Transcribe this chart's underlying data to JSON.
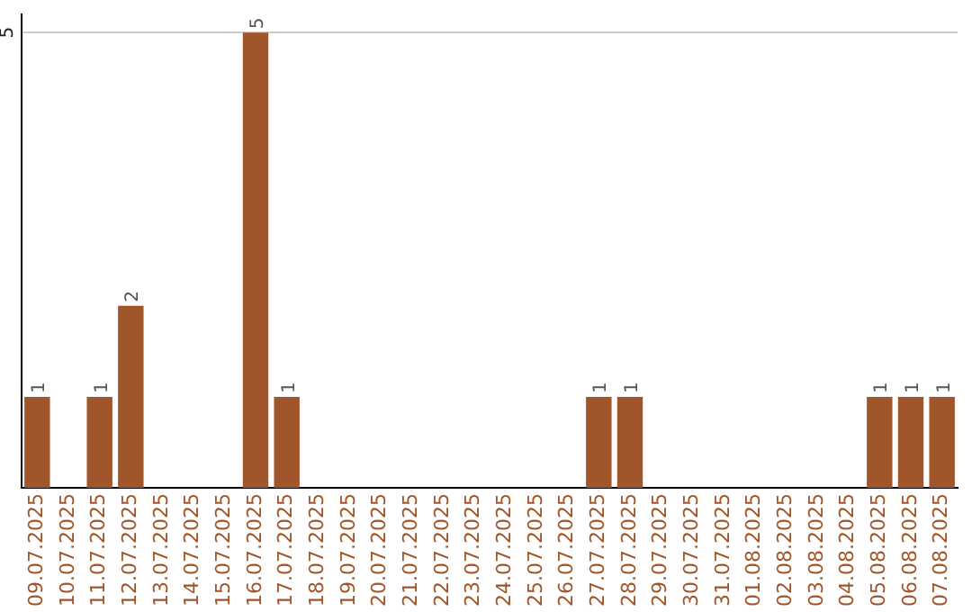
{
  "chart_data": {
    "type": "bar",
    "categories": [
      "09.07.2025",
      "10.07.2025",
      "11.07.2025",
      "12.07.2025",
      "13.07.2025",
      "14.07.2025",
      "15.07.2025",
      "16.07.2025",
      "17.07.2025",
      "18.07.2025",
      "19.07.2025",
      "20.07.2025",
      "21.07.2025",
      "22.07.2025",
      "23.07.2025",
      "24.07.2025",
      "25.07.2025",
      "26.07.2025",
      "27.07.2025",
      "28.07.2025",
      "29.07.2025",
      "30.07.2025",
      "31.07.2025",
      "01.08.2025",
      "02.08.2025",
      "03.08.2025",
      "04.08.2025",
      "05.08.2025",
      "06.08.2025",
      "07.08.2025"
    ],
    "values": [
      1,
      0,
      1,
      2,
      0,
      0,
      0,
      5,
      1,
      0,
      0,
      0,
      0,
      0,
      0,
      0,
      0,
      0,
      1,
      1,
      0,
      0,
      0,
      0,
      0,
      0,
      0,
      1,
      1,
      1
    ],
    "value_labels": [
      "1",
      null,
      "1",
      "2",
      null,
      null,
      null,
      "5",
      "1",
      null,
      null,
      null,
      null,
      null,
      null,
      null,
      null,
      null,
      "1",
      "1",
      null,
      null,
      null,
      null,
      null,
      null,
      null,
      "1",
      "1",
      "1"
    ],
    "color": "#a0562a",
    "ylim": [
      0,
      5.2
    ],
    "yticks": [
      5
    ],
    "grid": "y",
    "legend": false
  }
}
